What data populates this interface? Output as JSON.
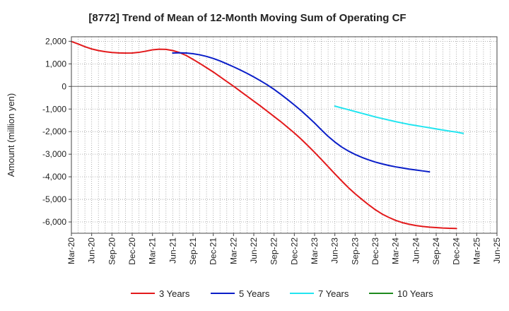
{
  "chart_data": {
    "type": "line",
    "title": "[8772]  Trend of Mean of 12-Month Moving Sum of Operating CF",
    "xlabel": "",
    "ylabel": "Amount (million yen)",
    "ylim": [
      -6500,
      2200
    ],
    "yticks": [
      2000,
      1000,
      0,
      -1000,
      -2000,
      -3000,
      -4000,
      -5000,
      -6000
    ],
    "ytick_labels": [
      "2,000",
      "1,000",
      "0",
      "-1,000",
      "-2,000",
      "-3,000",
      "-4,000",
      "-5,000",
      "-6,000"
    ],
    "x_tick_labels": [
      "Mar-20",
      "Jun-20",
      "Sep-20",
      "Dec-20",
      "Mar-21",
      "Jun-21",
      "Sep-21",
      "Dec-21",
      "Mar-22",
      "Jun-22",
      "Sep-22",
      "Dec-22",
      "Mar-23",
      "Jun-23",
      "Sep-23",
      "Dec-23",
      "Mar-24",
      "Jun-24",
      "Sep-24",
      "Dec-24",
      "Mar-25",
      "Jun-25"
    ],
    "x_range_months": [
      0,
      63
    ],
    "grid": true,
    "legend_position": "bottom",
    "series": [
      {
        "name": "3 Years",
        "color": "#e31a1c",
        "start_month": 0,
        "values": [
          1990,
          1880,
          1760,
          1660,
          1590,
          1540,
          1505,
          1485,
          1475,
          1480,
          1510,
          1560,
          1620,
          1650,
          1640,
          1590,
          1500,
          1370,
          1200,
          1020,
          830,
          640,
          430,
          220,
          10,
          -210,
          -430,
          -650,
          -870,
          -1100,
          -1330,
          -1560,
          -1810,
          -2060,
          -2330,
          -2620,
          -2920,
          -3230,
          -3550,
          -3870,
          -4180,
          -4480,
          -4750,
          -5000,
          -5240,
          -5460,
          -5650,
          -5800,
          -5930,
          -6030,
          -6100,
          -6160,
          -6200,
          -6230,
          -6250,
          -6270,
          -6280,
          -6290
        ]
      },
      {
        "name": "5 Years",
        "color": "#0a1ec8",
        "start_month": 15,
        "values": [
          1480,
          1490,
          1480,
          1450,
          1400,
          1330,
          1240,
          1130,
          1000,
          870,
          730,
          580,
          420,
          250,
          70,
          -130,
          -350,
          -580,
          -820,
          -1070,
          -1340,
          -1620,
          -1920,
          -2210,
          -2460,
          -2680,
          -2860,
          -3010,
          -3140,
          -3250,
          -3350,
          -3430,
          -3500,
          -3560,
          -3610,
          -3660,
          -3700,
          -3740,
          -3780
        ]
      },
      {
        "name": "7 Years",
        "color": "#22e5f0",
        "start_month": 39,
        "values": [
          -870,
          -950,
          -1030,
          -1110,
          -1190,
          -1270,
          -1350,
          -1420,
          -1490,
          -1560,
          -1620,
          -1680,
          -1730,
          -1780,
          -1830,
          -1880,
          -1930,
          -1980,
          -2020,
          -2080
        ]
      },
      {
        "name": "10 Years",
        "color": "#1f8a1f",
        "start_month": 0,
        "values": []
      }
    ]
  }
}
